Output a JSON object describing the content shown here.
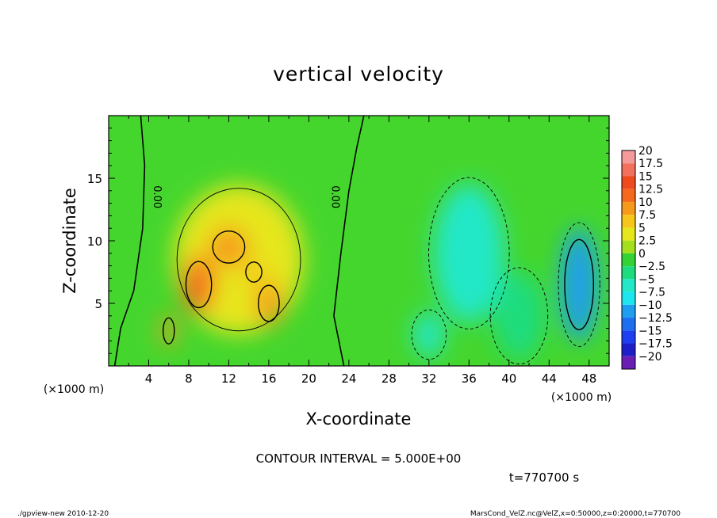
{
  "chart_data": {
    "type": "heatmap",
    "title": "vertical velocity",
    "xlabel": "X-coordinate",
    "ylabel": "Z-coordinate",
    "x_unit": "(×1000 m)",
    "y_unit": "(×1000 m)",
    "xlim": [
      0,
      50
    ],
    "ylim": [
      0,
      20
    ],
    "x_ticks": [
      4,
      8,
      12,
      16,
      20,
      24,
      28,
      32,
      36,
      40,
      44,
      48
    ],
    "x_tick_labels": [
      "4",
      "8",
      "12",
      "16",
      "20",
      "24",
      "28",
      "32",
      "36",
      "40",
      "44",
      "48"
    ],
    "y_ticks": [
      5,
      10,
      15
    ],
    "y_tick_labels": [
      "5",
      "10",
      "15"
    ],
    "colorbar": {
      "levels": [
        20,
        17.5,
        15,
        12.5,
        10,
        7.5,
        5,
        2.5,
        0,
        -2.5,
        -5,
        -7.5,
        -10,
        -12.5,
        -15,
        -17.5,
        -20
      ],
      "labels": [
        "20",
        "17.5",
        "15",
        "12.5",
        "10",
        "7.5",
        "5",
        "2.5",
        "0",
        "−2.5",
        "−5",
        "−7.5",
        "−10",
        "−12.5",
        "−15",
        "−17.5",
        "−20"
      ],
      "colors": [
        "#f59a9a",
        "#f2705c",
        "#ef4a1e",
        "#f5691c",
        "#f79a1c",
        "#f7c51c",
        "#e6e61c",
        "#a6e01c",
        "#34d234",
        "#1edc7e",
        "#22e8c8",
        "#1ee6f0",
        "#1e9ef0",
        "#1e6ef0",
        "#1e3ef0",
        "#1e1ec8",
        "#6a1eb4"
      ]
    },
    "contour_interval_text": "CONTOUR INTERVAL = 5.000E+00",
    "contour_labels": [
      "0.00",
      "0.00"
    ],
    "features": [
      {
        "x": 9,
        "z": 6.5,
        "value": 12,
        "rx": 1.6,
        "rz": 2.3
      },
      {
        "x": 12,
        "z": 9.5,
        "value": 11,
        "rx": 2.0,
        "rz": 1.6
      },
      {
        "x": 16,
        "z": 5.0,
        "value": 10,
        "rx": 1.3,
        "rz": 1.8
      },
      {
        "x": 6,
        "z": 2.8,
        "value": 10,
        "rx": 0.7,
        "rz": 1.3
      },
      {
        "x": 14.5,
        "z": 7.5,
        "value": 8,
        "rx": 1.0,
        "rz": 1.0
      },
      {
        "x": 13,
        "z": 8.5,
        "value": 4,
        "rx": 6.5,
        "rz": 6.0
      },
      {
        "x": 36,
        "z": 9,
        "value": -4,
        "rx": 3.5,
        "rz": 5.5
      },
      {
        "x": 32,
        "z": 2.5,
        "value": -5,
        "rx": 1.5,
        "rz": 1.8
      },
      {
        "x": 47,
        "z": 6.5,
        "value": -9,
        "rx": 1.8,
        "rz": 4.5
      },
      {
        "x": 41,
        "z": 4,
        "value": -3,
        "rx": 2.5,
        "rz": 3.5
      }
    ],
    "time_text": "t=770700 s"
  },
  "footer": {
    "left": "./gpview-new  2010-12-20",
    "right": "MarsCond_VelZ.nc@VelZ,x=0:50000,z=0:20000,t=770700"
  }
}
